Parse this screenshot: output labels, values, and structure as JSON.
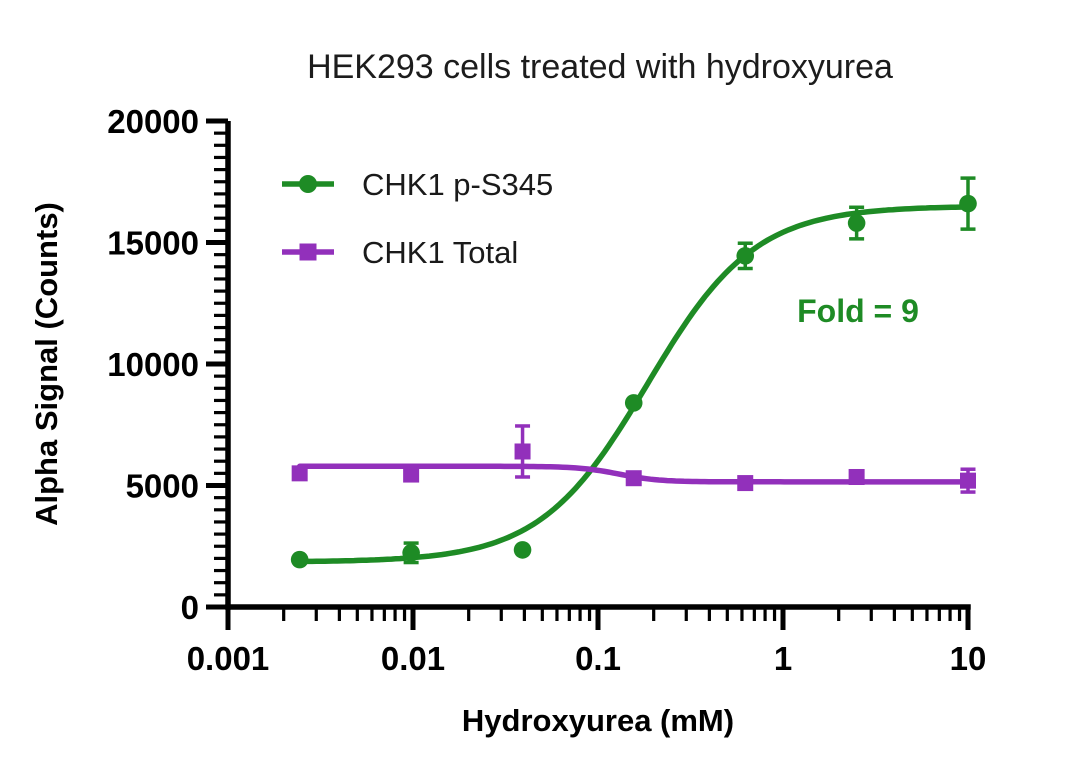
{
  "window": {
    "background": "#ffffff"
  },
  "chart_data": {
    "type": "line",
    "title": "HEK293 cells treated with hydroxyurea",
    "xlabel": "Hydroxyurea (mM)",
    "ylabel": "Alpha Signal (Counts)",
    "x_scale": "log10",
    "xlim": [
      0.001,
      10
    ],
    "ylim": [
      0,
      20000
    ],
    "grid": false,
    "legend_position": "top-left-inside",
    "x_ticks": [
      {
        "value": 0.001,
        "label": "0.001"
      },
      {
        "value": 0.01,
        "label": "0.01"
      },
      {
        "value": 0.1,
        "label": "0.1"
      },
      {
        "value": 1,
        "label": "1"
      },
      {
        "value": 10,
        "label": "10"
      }
    ],
    "y_ticks": [
      {
        "value": 0,
        "label": "0"
      },
      {
        "value": 5000,
        "label": "5000"
      },
      {
        "value": 10000,
        "label": "10000"
      },
      {
        "value": 15000,
        "label": "15000"
      },
      {
        "value": 20000,
        "label": "20000"
      }
    ],
    "y_minor_step": 500,
    "x_minor_ticks": "log-decade-2-to-9",
    "annotation": {
      "text": "Fold = 9",
      "color": "#1e8b25"
    },
    "series": [
      {
        "name": "CHK1 p-S345",
        "color": "#1e8b25",
        "marker": "circle",
        "x": [
          0.00244,
          0.00977,
          0.0391,
          0.156,
          0.625,
          2.5,
          10
        ],
        "y": [
          1950,
          2230,
          2350,
          8400,
          14450,
          15800,
          16600
        ],
        "yerr": [
          0,
          400,
          0,
          0,
          520,
          650,
          1050
        ],
        "fit": {
          "model": "4PL",
          "bottom": 1850,
          "top": 16500,
          "ec50": 0.185,
          "hill": 1.5
        }
      },
      {
        "name": "CHK1 Total",
        "color": "#9230bb",
        "marker": "square",
        "x": [
          0.00244,
          0.00977,
          0.0391,
          0.156,
          0.625,
          2.5,
          10
        ],
        "y": [
          5500,
          5450,
          6400,
          5300,
          5100,
          5350,
          5200
        ],
        "yerr": [
          0,
          0,
          1050,
          0,
          0,
          0,
          470
        ],
        "fit": {
          "model": "4PL",
          "bottom": 5150,
          "top": 5790,
          "ec50": 0.13,
          "hill": -4
        }
      }
    ]
  }
}
